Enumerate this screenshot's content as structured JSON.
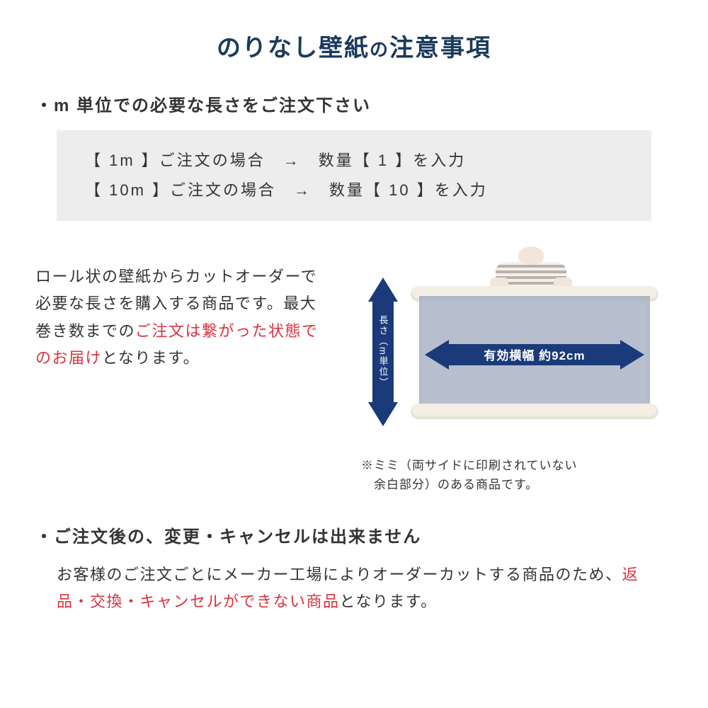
{
  "colors": {
    "title": "#1a3a5c",
    "arrow": "#1a3a7a",
    "box_bg": "#ededed",
    "sheet": "#b7becd",
    "roll": "#f3efe5",
    "red": "#d9333f",
    "text": "#333333",
    "white": "#ffffff"
  },
  "title": {
    "main": "のりなし壁紙",
    "connector": "の",
    "sub": "注意事項"
  },
  "bullet1": "m 単位での必要な長さをご注文下さい",
  "examples": {
    "row1": "【 1m 】ご注文の場合　→　数量【 1 】を入力",
    "row2": "【 10m 】ご注文の場合　→　数量【 10 】を入力"
  },
  "mid": {
    "p1": "ロール状の壁紙からカットオーダーで必要な長さを購入する商品です。最大巻き数までの",
    "p1_red": "ご注文は繋がった状態でのお届け",
    "p1_end": "となります。"
  },
  "diagram": {
    "v_label": "長さ（m単位）",
    "h_label": "有効横幅 約92cm",
    "caption": "※ミミ（両サイドに印刷されていない\n　余白部分）のある商品です。"
  },
  "bullet2": "ご注文後の、変更・キャンセルは出来ません",
  "cancel": {
    "p1": "お客様のご注文ごとにメーカー工場によりオーダーカットする商品のため、",
    "p1_red": "返品・交換・キャンセルができない商品",
    "p1_end": "となります。"
  }
}
